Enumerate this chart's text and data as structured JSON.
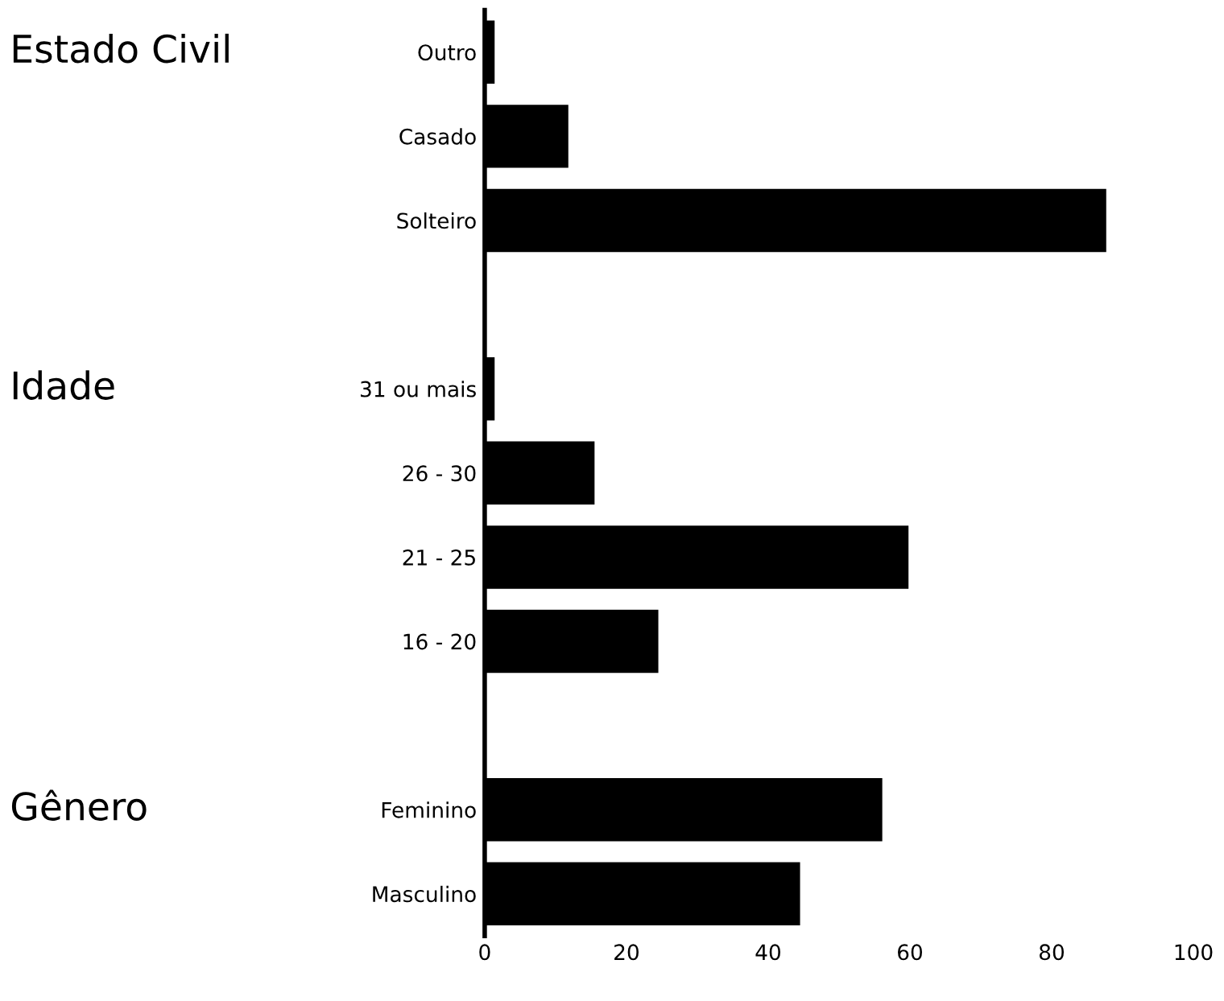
{
  "chart_data": {
    "type": "bar",
    "orientation": "horizontal",
    "categories": [
      "Outro",
      "Casado",
      "Solteiro",
      null,
      "31 ou mais",
      "26 - 30",
      "21 - 25",
      "16 - 20",
      null,
      "Feminino",
      "Masculino"
    ],
    "values": [
      1.4,
      11.8,
      87.7,
      null,
      1.4,
      15.5,
      59.8,
      24.5,
      null,
      56.1,
      44.5
    ],
    "color": "#000000",
    "xlim": [
      0,
      100
    ],
    "xticks": [
      0,
      20,
      40,
      60,
      80,
      100
    ],
    "grid": false,
    "annotations": [
      "Estado Civil",
      "Idade",
      "Gênero"
    ]
  }
}
